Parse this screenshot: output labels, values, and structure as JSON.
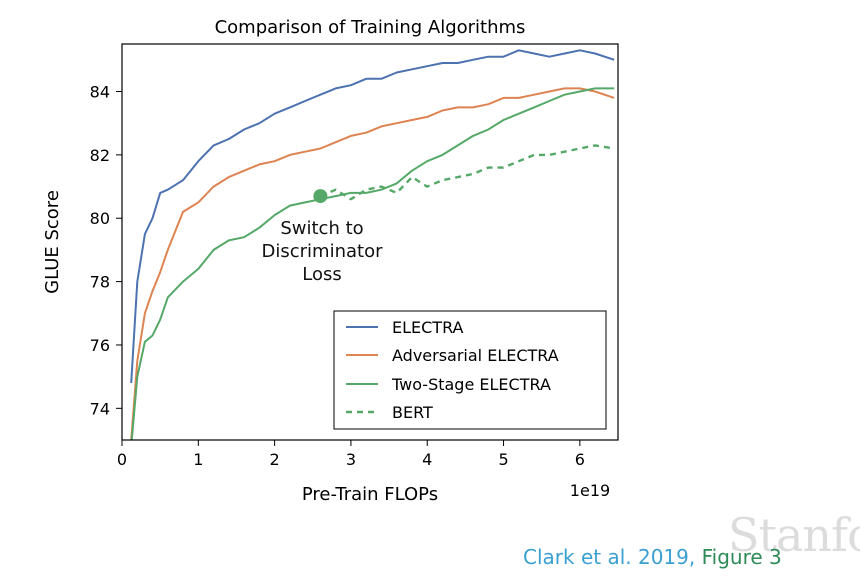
{
  "chart_data": {
    "type": "line",
    "title": "Comparison of Training Algorithms",
    "xlabel": "Pre-Train FLOPs",
    "x_scale_label": "1e19",
    "ylabel": "GLUE Score",
    "xlim": [
      0,
      6.5
    ],
    "ylim": [
      73,
      85.5
    ],
    "x_ticks": [
      0,
      1,
      2,
      3,
      4,
      5,
      6
    ],
    "y_ticks": [
      74,
      76,
      78,
      80,
      82,
      84
    ],
    "grid": false,
    "legend_position": "lower-right",
    "annotation": {
      "lines": [
        "Switch to",
        "Discriminator",
        "Loss"
      ],
      "x": 2.6,
      "y": 80.7
    },
    "series": [
      {
        "name": "ELECTRA",
        "color": "#4c72b0",
        "style": "solid",
        "x": [
          0.12,
          0.2,
          0.3,
          0.4,
          0.5,
          0.6,
          0.8,
          1.0,
          1.2,
          1.4,
          1.6,
          1.8,
          2.0,
          2.2,
          2.4,
          2.6,
          2.8,
          3.0,
          3.2,
          3.4,
          3.6,
          3.8,
          4.0,
          4.2,
          4.4,
          4.6,
          4.8,
          5.0,
          5.2,
          5.4,
          5.6,
          5.8,
          6.0,
          6.2,
          6.45
        ],
        "y": [
          74.8,
          78.0,
          79.5,
          80.0,
          80.8,
          80.9,
          81.2,
          81.8,
          82.3,
          82.5,
          82.8,
          83.0,
          83.3,
          83.5,
          83.7,
          83.9,
          84.1,
          84.2,
          84.4,
          84.4,
          84.6,
          84.7,
          84.8,
          84.9,
          84.9,
          85.0,
          85.1,
          85.1,
          85.3,
          85.2,
          85.1,
          85.2,
          85.3,
          85.2,
          85.0
        ]
      },
      {
        "name": "Adversarial ELECTRA",
        "color": "#dd8452",
        "style": "solid",
        "x": [
          0.12,
          0.2,
          0.3,
          0.4,
          0.5,
          0.6,
          0.8,
          1.0,
          1.2,
          1.4,
          1.6,
          1.8,
          2.0,
          2.2,
          2.4,
          2.6,
          2.8,
          3.0,
          3.2,
          3.4,
          3.6,
          3.8,
          4.0,
          4.2,
          4.4,
          4.6,
          4.8,
          5.0,
          5.2,
          5.4,
          5.6,
          5.8,
          6.0,
          6.2,
          6.45
        ],
        "y": [
          73.0,
          75.5,
          77.0,
          77.7,
          78.3,
          79.0,
          80.2,
          80.5,
          81.0,
          81.3,
          81.5,
          81.7,
          81.8,
          82.0,
          82.1,
          82.2,
          82.4,
          82.6,
          82.7,
          82.9,
          83.0,
          83.1,
          83.2,
          83.4,
          83.5,
          83.5,
          83.6,
          83.8,
          83.8,
          83.9,
          84.0,
          84.1,
          84.1,
          84.0,
          83.8
        ]
      },
      {
        "name": "Two-Stage ELECTRA",
        "color": "#55a868",
        "style": "solid",
        "x": [
          0.12,
          0.2,
          0.3,
          0.4,
          0.5,
          0.6,
          0.8,
          1.0,
          1.2,
          1.4,
          1.6,
          1.8,
          2.0,
          2.2,
          2.4,
          2.6,
          2.8,
          3.0,
          3.2,
          3.4,
          3.6,
          3.8,
          4.0,
          4.2,
          4.4,
          4.6,
          4.8,
          5.0,
          5.2,
          5.4,
          5.6,
          5.8,
          6.0,
          6.2,
          6.45
        ],
        "y": [
          72.8,
          75.0,
          76.1,
          76.3,
          76.8,
          77.5,
          78.0,
          78.4,
          79.0,
          79.3,
          79.4,
          79.7,
          80.1,
          80.4,
          80.5,
          80.6,
          80.7,
          80.8,
          80.8,
          80.9,
          81.1,
          81.5,
          81.8,
          82.0,
          82.3,
          82.6,
          82.8,
          83.1,
          83.3,
          83.5,
          83.7,
          83.9,
          84.0,
          84.1,
          84.1
        ]
      },
      {
        "name": "BERT",
        "color": "#55a868",
        "style": "dashed",
        "x": [
          2.6,
          2.8,
          3.0,
          3.2,
          3.4,
          3.6,
          3.8,
          4.0,
          4.2,
          4.4,
          4.6,
          4.8,
          5.0,
          5.2,
          5.4,
          5.6,
          5.8,
          6.0,
          6.2,
          6.45
        ],
        "y": [
          80.7,
          80.9,
          80.6,
          80.9,
          81.0,
          80.8,
          81.3,
          81.0,
          81.2,
          81.3,
          81.4,
          81.6,
          81.6,
          81.8,
          82.0,
          82.0,
          82.1,
          82.2,
          82.3,
          82.2
        ]
      }
    ]
  },
  "citation": {
    "text": "Clark et al. 2019, ",
    "figure": "Figure 3"
  },
  "watermark": "Stanfo"
}
